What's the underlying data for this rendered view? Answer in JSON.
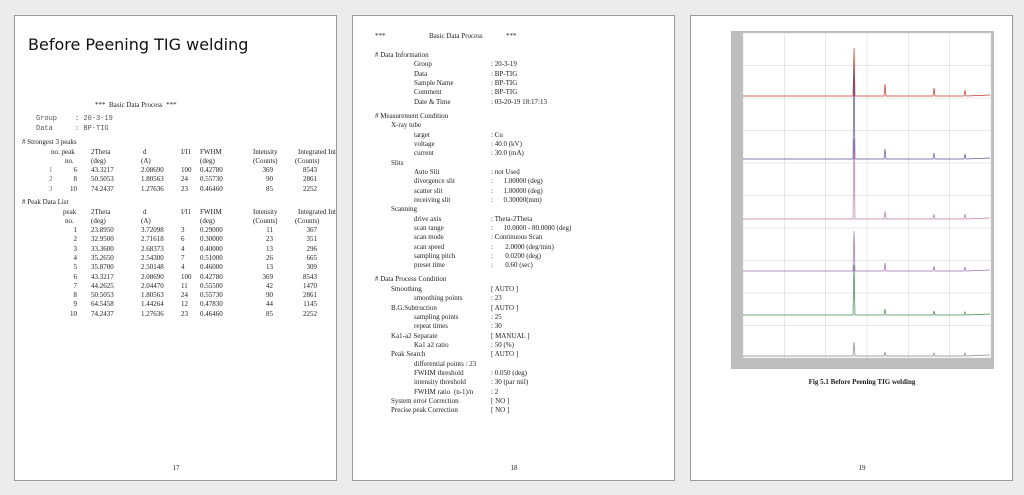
{
  "pages": [
    {
      "title": "Before Peening TIG welding",
      "report_header": "***  Basic Data Process  ***",
      "info": [
        {
          "label": "Group",
          "value": ": 20-3-19"
        },
        {
          "label": "Data",
          "value": ": BP-TIG"
        }
      ],
      "strongest": {
        "heading": "# Strongest 3 peaks",
        "header": [
          "no. peak",
          "2Theta",
          "d",
          "I/I1",
          "FWHM",
          "Intensity",
          "Integrated Int"
        ],
        "units": [
          "no.",
          "(deg)",
          "(A)",
          "(deg)",
          "(Counts)",
          "(Counts)"
        ],
        "rows": [
          [
            "1",
            "6",
            "43.3217",
            "2.08690",
            "100",
            "0.42780",
            "369",
            "8543"
          ],
          [
            "2",
            "8",
            "50.5053",
            "1.80563",
            "24",
            "0.55730",
            "90",
            "2861"
          ],
          [
            "3",
            "10",
            "74.2437",
            "1.27636",
            "23",
            "0.46460",
            "85",
            "2252"
          ]
        ]
      },
      "peak_list": {
        "heading": "# Peak Data List",
        "header": [
          "peak",
          "2Theta",
          "d",
          "I/I1",
          "FWHM",
          "Intensity",
          "Integrated Int"
        ],
        "units": [
          "no.",
          "(deg)",
          "(A)",
          "(deg)",
          "(Counts)",
          "(Counts)"
        ],
        "rows": [
          [
            "1",
            "23.8950",
            "3.72098",
            "3",
            "0.29000",
            "11",
            "367"
          ],
          [
            "2",
            "32.9500",
            "2.71618",
            "6",
            "0.30000",
            "23",
            "351"
          ],
          [
            "3",
            "33.3600",
            "2.68373",
            "4",
            "0.40000",
            "13",
            "296"
          ],
          [
            "4",
            "35.2650",
            "2.54300",
            "7",
            "0.51000",
            "26",
            "665"
          ],
          [
            "5",
            "35.8700",
            "2.50148",
            "4",
            "0.46000",
            "13",
            "309"
          ],
          [
            "6",
            "43.3217",
            "2.08690",
            "100",
            "0.42780",
            "369",
            "8543"
          ],
          [
            "7",
            "44.2625",
            "2.04470",
            "11",
            "0.55500",
            "42",
            "1470"
          ],
          [
            "8",
            "50.5053",
            "1.80563",
            "24",
            "0.55730",
            "90",
            "2861"
          ],
          [
            "9",
            "64.5458",
            "1.44264",
            "12",
            "0.47830",
            "44",
            "1145"
          ],
          [
            "10",
            "74.2437",
            "1.27636",
            "23",
            "0.46460",
            "85",
            "2252"
          ]
        ]
      },
      "page_number": "17"
    },
    {
      "header": [
        "***",
        "Basic Data Process",
        "***"
      ],
      "sections": [
        {
          "heading": "# Data Information",
          "entries": [
            {
              "label": "Group",
              "value": ": 20-3-19"
            },
            {
              "label": "Data",
              "value": ": BP-TIG"
            },
            {
              "label": "Sample Name",
              "value": ": BP-TIG"
            },
            {
              "label": "Comment",
              "value": ": BP-TIG"
            },
            {
              "label": "Date & Time",
              "value": ": 03-20-19 18:17:13"
            }
          ]
        },
        {
          "heading": "# Measurement Condition",
          "entries": [
            {
              "label": "X-ray tube",
              "entries": [
                {
                  "label": "target",
                  "value": ": Cu"
                },
                {
                  "label": "voltage",
                  "value": ": 40.0 (kV)"
                },
                {
                  "label": "current",
                  "value": ": 30.0 (mA)"
                }
              ]
            },
            {
              "label": "Slits",
              "entries": [
                {
                  "label": "Auto Slit",
                  "value": ": not Used"
                },
                {
                  "label": "divergence slit",
                  "value": ":      1.00000 (deg)"
                },
                {
                  "label": "scatter slit",
                  "value": ":      1.00000 (deg)"
                },
                {
                  "label": "receiving slit",
                  "value": ":      0.30000(mm)"
                }
              ]
            },
            {
              "label": "Scanning",
              "entries": [
                {
                  "label": "drive axis",
                  "value": ": Theta-2Theta"
                },
                {
                  "label": "scan range",
                  "value": ":      10.0000 - 80.0000 (deg)"
                },
                {
                  "label": "scan mode",
                  "value": ": Continuous Scan"
                },
                {
                  "label": "scan speed",
                  "value": ":       2.0000 (deg/min)"
                },
                {
                  "label": "sampling pitch",
                  "value": ":       0.0200 (deg)"
                },
                {
                  "label": "preset time",
                  "value": ":       0.60 (sec)"
                }
              ]
            }
          ]
        },
        {
          "heading": "# Data Process Condition",
          "entries": [
            {
              "label": "Smoothing",
              "value": "[ AUTO ]",
              "entries": [
                {
                  "label": "smoothing points",
                  "value": ": 23"
                }
              ]
            },
            {
              "label": "B.G.Subtruction",
              "value": "[ AUTO ]",
              "entries": [
                {
                  "label": "sampling points",
                  "value": ": 25"
                },
                {
                  "label": "repeat times",
                  "value": ": 30"
                }
              ]
            },
            {
              "label": "Ka1-a2 Separate",
              "value": "[ MANUAL ]",
              "entries": [
                {
                  "label": "Ka1 a2 ratio",
                  "value": ": 50 (%)"
                }
              ]
            },
            {
              "label": "Peak Search",
              "value": "[ AUTO ]",
              "entries": [
                {
                  "label": "differential points : 23"
                },
                {
                  "label": "FWHM threshold",
                  "value": ": 0.050 (deg)"
                },
                {
                  "label": "intensity threshold",
                  "value": ": 30 (par mil)"
                },
                {
                  "label": "FWHM ratio  (n-1)/n",
                  "value": ": 2"
                }
              ]
            },
            {
              "label": "System error Correction",
              "value": "[ NO ]"
            },
            {
              "label": "Precise peak Correction",
              "value": "[ NO ]"
            }
          ]
        }
      ],
      "page_number": "18"
    },
    {
      "figure_caption": "Fig 5.1 Before Peening TIG welding",
      "page_number": "19"
    }
  ]
}
